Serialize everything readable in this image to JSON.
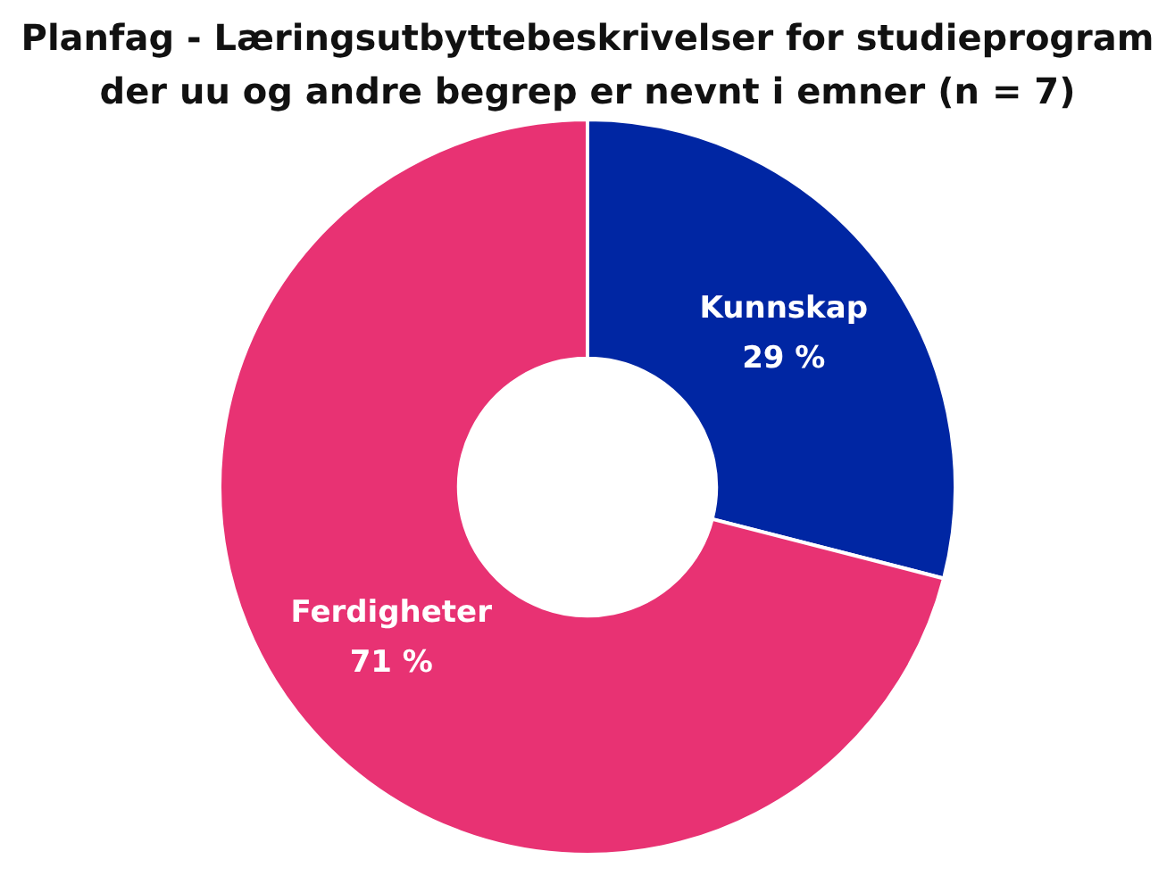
{
  "chart_data": {
    "type": "donut",
    "title": "Planfag - Læringsutbyttebeskrivelser for studieprogram der uu og andre begrep er nevnt i emner (n = 7)",
    "categories": [
      "Kunnskap",
      "Ferdigheter"
    ],
    "values": [
      29,
      71
    ],
    "colors": [
      "#0026a3",
      "#e83273"
    ],
    "value_labels": [
      "29 %",
      "71 %"
    ],
    "legend": false
  }
}
